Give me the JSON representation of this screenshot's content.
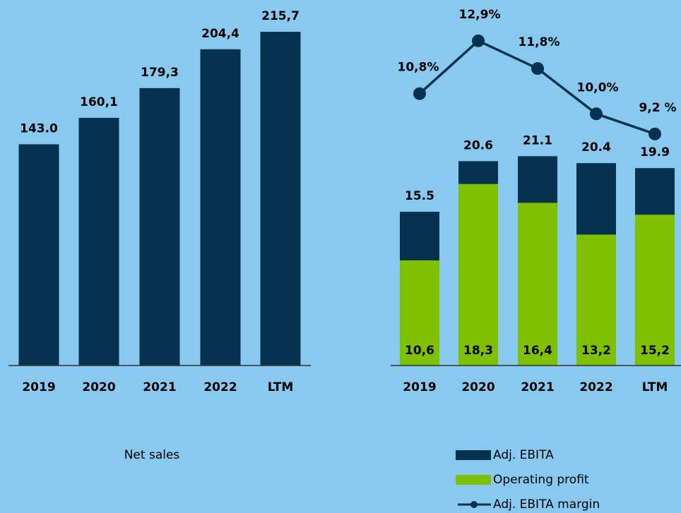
{
  "chart_data": [
    {
      "type": "bar",
      "title": "Net sales",
      "categories": [
        "2019",
        "2020",
        "2021",
        "2022",
        "LTM"
      ],
      "values": [
        143.0,
        160.1,
        179.3,
        204.4,
        215.7
      ],
      "value_labels": [
        "143.0",
        "160,1",
        "179,3",
        "204,4",
        "215,7"
      ],
      "color": "#05334f",
      "ylim": [
        0,
        218
      ]
    },
    {
      "type": "combo",
      "categories": [
        "2019",
        "2020",
        "2021",
        "2022",
        "LTM"
      ],
      "series": [
        {
          "name": "Adj. EBITA",
          "color": "#05334f",
          "values": [
            15.5,
            20.6,
            21.1,
            20.4,
            19.9
          ]
        },
        {
          "name": "Operating profit",
          "color": "#7fc000",
          "values": [
            10.6,
            18.3,
            16.4,
            13.2,
            15.2
          ],
          "value_labels": [
            "10,6",
            "18,3",
            "16,4",
            "13,2",
            "15,2"
          ]
        },
        {
          "name": "Adj. EBITA margin",
          "color": "#05334f",
          "type": "line",
          "axis": "y2",
          "values": [
            10.8,
            12.9,
            11.8,
            10.0,
            9.2
          ],
          "value_labels": [
            "10,8%",
            "12,9%",
            "11,8%",
            "10,0%",
            "9,2 %"
          ]
        }
      ],
      "ylim": [
        0,
        34
      ],
      "y2lim": [
        0,
        13.4
      ]
    }
  ]
}
